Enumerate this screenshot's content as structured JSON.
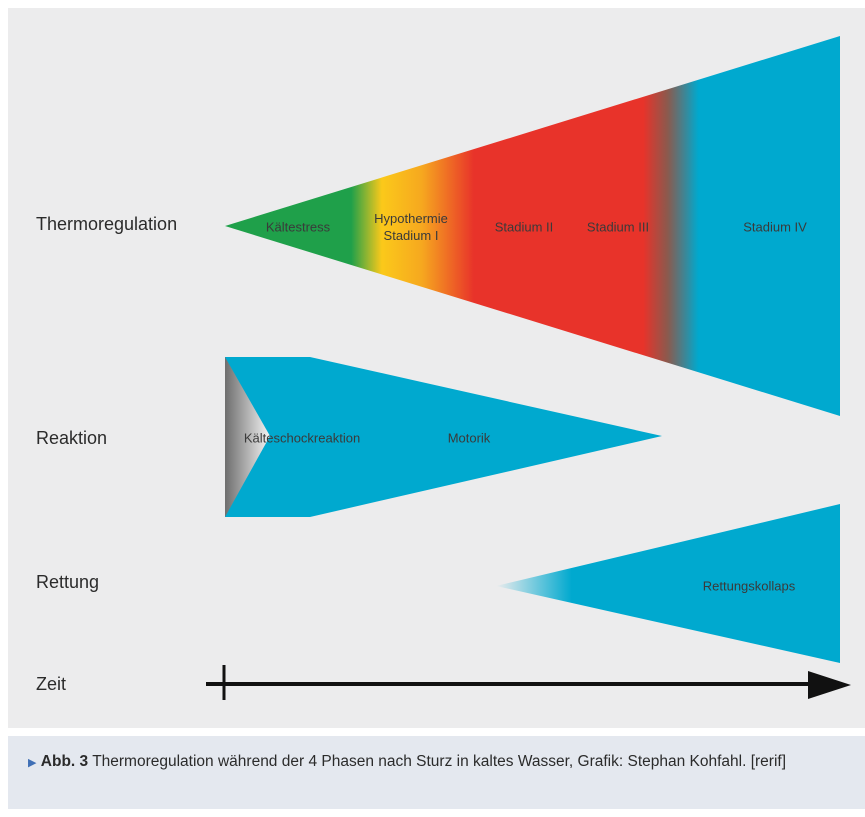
{
  "diagram": {
    "rows": {
      "thermoregulation": "Thermoregulation",
      "reaktion": "Reaktion",
      "rettung": "Rettung",
      "zeit": "Zeit"
    },
    "thermo_phases": {
      "kaeltestress": "Kältestress",
      "hypothermie_line1": "Hypothermie",
      "hypothermie_line2": "Stadium I",
      "stadium_ii": "Stadium II",
      "stadium_iii": "Stadium III",
      "stadium_iv": "Stadium IV"
    },
    "reaktion_phases": {
      "kaelteschock": "Kälteschockreaktion",
      "motorik": "Motorik"
    },
    "rettung_phases": {
      "rettungskollaps": "Rettungskollaps"
    },
    "colors": {
      "background": "#ececed",
      "green": "#1fa04a",
      "yellow": "#fbc91a",
      "red": "#e8332a",
      "blue": "#00a9cf",
      "gray": "#7a7a7a"
    }
  },
  "caption": {
    "marker": "▶",
    "label": "Abb. 3",
    "text": "Thermoregulation während der 4 Phasen nach Sturz in kaltes Wasser, Grafik: Stephan Kohfahl. [rerif]"
  }
}
